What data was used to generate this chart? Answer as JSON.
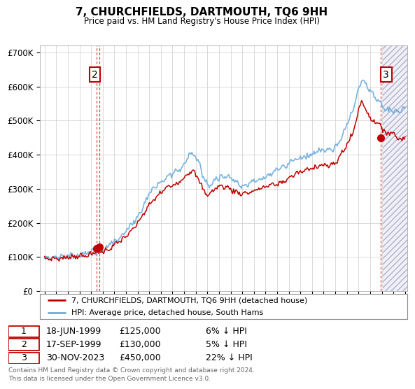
{
  "title": "7, CHURCHFIELDS, DARTMOUTH, TQ6 9HH",
  "subtitle": "Price paid vs. HM Land Registry's House Price Index (HPI)",
  "legend_line1": "7, CHURCHFIELDS, DARTMOUTH, TQ6 9HH (detached house)",
  "legend_line2": "HPI: Average price, detached house, South Hams",
  "transactions": [
    {
      "num": 1,
      "date": "18-JUN-1999",
      "price": 125000,
      "pct": "6%",
      "dir": "↓",
      "x_year": 1999.46
    },
    {
      "num": 2,
      "date": "17-SEP-1999",
      "price": 130000,
      "pct": "5%",
      "dir": "↓",
      "x_year": 1999.71
    },
    {
      "num": 3,
      "date": "30-NOV-2023",
      "price": 450000,
      "pct": "22%",
      "dir": "↓",
      "x_year": 2023.92
    }
  ],
  "table_rows": [
    [
      "1",
      "18-JUN-1999",
      "£125,000",
      "6% ↓ HPI"
    ],
    [
      "2",
      "17-SEP-1999",
      "£130,000",
      "5% ↓ HPI"
    ],
    [
      "3",
      "30-NOV-2023",
      "£450,000",
      "22% ↓ HPI"
    ]
  ],
  "ylabel_ticks": [
    "£0",
    "£100K",
    "£200K",
    "£300K",
    "£400K",
    "£500K",
    "£600K",
    "£700K"
  ],
  "ytick_vals": [
    0,
    100000,
    200000,
    300000,
    400000,
    500000,
    600000,
    700000
  ],
  "ymax": 720000,
  "xmin": 1994.6,
  "xmax": 2026.2,
  "hpi_color": "#6aabdc",
  "price_color": "#c00000",
  "hatch_region_start": 2024.08,
  "footer": "Contains HM Land Registry data © Crown copyright and database right 2024.\nThis data is licensed under the Open Government Licence v3.0.",
  "background_color": "#ffffff",
  "grid_color": "#cccccc"
}
